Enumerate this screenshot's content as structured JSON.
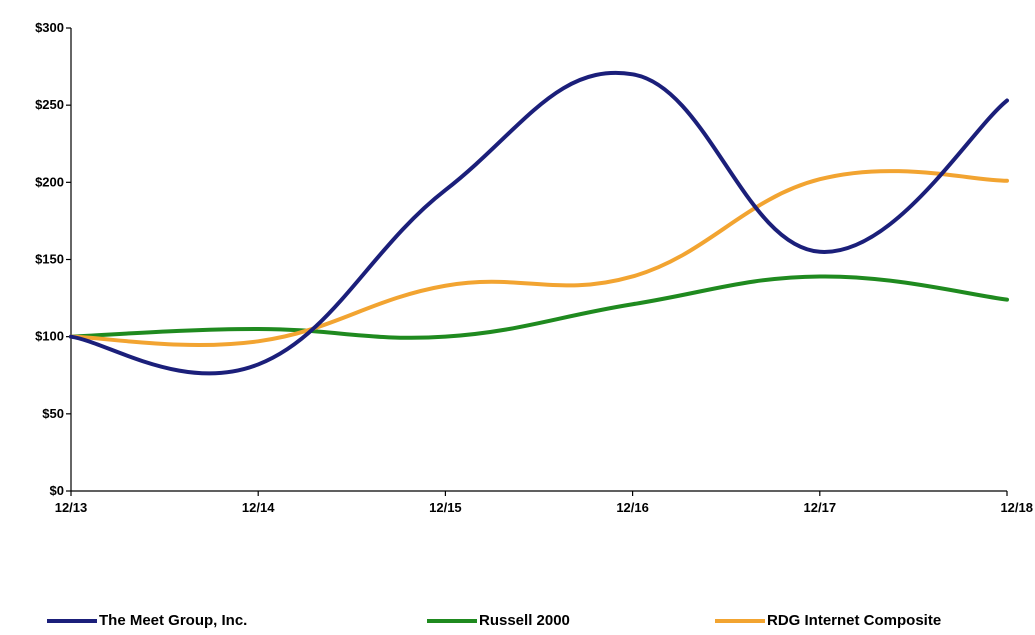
{
  "chart_data": {
    "type": "line",
    "title": "",
    "xlabel": "",
    "ylabel": "",
    "categories": [
      "12/13",
      "12/14",
      "12/15",
      "12/16",
      "12/17",
      "12/18"
    ],
    "y_tick_labels": [
      "$0",
      "$50",
      "$100",
      "$150",
      "$200",
      "$250",
      "$300"
    ],
    "ylim": [
      0,
      300
    ],
    "grid": false,
    "legend_position": "bottom",
    "series": [
      {
        "name": "The Meet Group, Inc.",
        "color": "#1b1f7a",
        "values": [
          100,
          82,
          195,
          270,
          155,
          253
        ]
      },
      {
        "name": "Russell 2000",
        "color": "#1f8a1f",
        "values": [
          100,
          105,
          100,
          121,
          139,
          124
        ]
      },
      {
        "name": "RDG Internet Composite",
        "color": "#f2a431",
        "values": [
          100,
          97,
          133,
          139,
          202,
          201
        ]
      }
    ]
  }
}
